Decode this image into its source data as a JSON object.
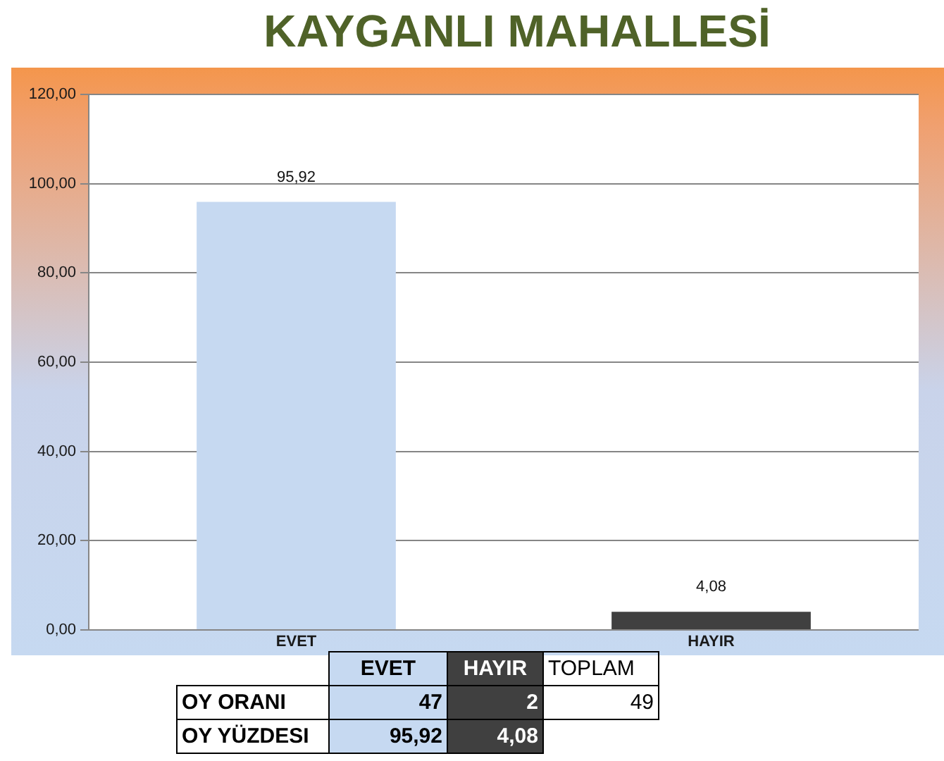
{
  "chart_data": {
    "type": "bar",
    "title": "KAYGANLI MAHALLESİ",
    "categories": [
      "EVET",
      "HAYIR"
    ],
    "values": [
      95.92,
      4.08
    ],
    "colors": [
      "#c6d9f1",
      "#404040"
    ],
    "value_labels": [
      "95,92",
      "4,08"
    ],
    "ylim": [
      0,
      120
    ],
    "yticks": [
      {
        "value": 0,
        "label": "0,00"
      },
      {
        "value": 20,
        "label": "20,00"
      },
      {
        "value": 40,
        "label": "40,00"
      },
      {
        "value": 60,
        "label": "60,00"
      },
      {
        "value": 80,
        "label": "80,00"
      },
      {
        "value": 100,
        "label": "100,00"
      },
      {
        "value": 120,
        "label": "120,00"
      }
    ],
    "grid": "y",
    "annotations": [
      "TOPLAM",
      "OY ORANI",
      "47",
      "2",
      "49",
      "OY YÜZDESI"
    ]
  }
}
